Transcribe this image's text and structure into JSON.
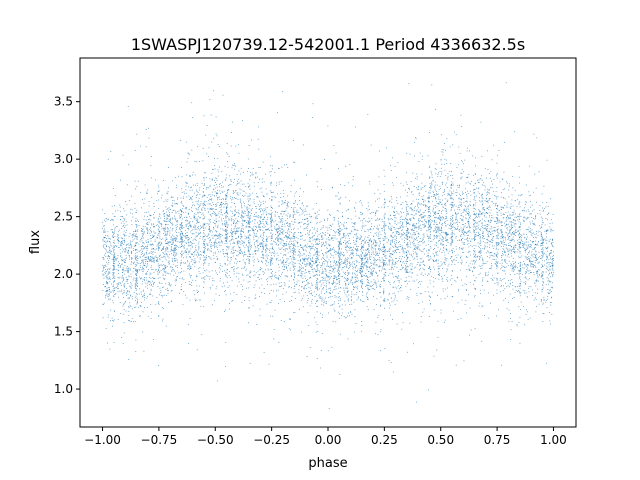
{
  "chart_data": {
    "type": "scatter",
    "title": "1SWASPJ120739.12-542001.1 Period 4336632.5s",
    "xlabel": "phase",
    "ylabel": "flux",
    "xlim": [
      -1.1,
      1.1
    ],
    "ylim": [
      0.67,
      3.88
    ],
    "xticks": [
      -1.0,
      -0.75,
      -0.5,
      -0.25,
      0.0,
      0.25,
      0.5,
      0.75,
      1.0
    ],
    "xtick_labels": [
      "−1.00",
      "−0.75",
      "−0.50",
      "−0.25",
      "0.00",
      "0.25",
      "0.50",
      "0.75",
      "1.00"
    ],
    "yticks": [
      1.0,
      1.5,
      2.0,
      2.5,
      3.0,
      3.5
    ],
    "ytick_labels": [
      "1.0",
      "1.5",
      "2.0",
      "2.5",
      "3.0",
      "3.5"
    ],
    "grid": false,
    "marker_color": "#1f77b4",
    "series": [
      {
        "phase_profile": {
          "x": [
            -1.0,
            -0.9,
            -0.8,
            -0.7,
            -0.6,
            -0.5,
            -0.4,
            -0.3,
            -0.2,
            -0.1,
            0.0,
            0.1,
            0.2,
            0.3,
            0.4,
            0.5,
            0.6,
            0.7,
            0.8,
            0.9,
            1.0
          ],
          "median_flux": [
            2.08,
            2.12,
            2.18,
            2.28,
            2.38,
            2.42,
            2.4,
            2.36,
            2.3,
            2.18,
            2.08,
            2.1,
            2.16,
            2.24,
            2.36,
            2.43,
            2.42,
            2.38,
            2.3,
            2.2,
            2.1
          ],
          "scatter_sigma": [
            0.22,
            0.22,
            0.23,
            0.24,
            0.26,
            0.28,
            0.26,
            0.25,
            0.24,
            0.23,
            0.22,
            0.22,
            0.23,
            0.24,
            0.26,
            0.28,
            0.26,
            0.25,
            0.24,
            0.23,
            0.22
          ]
        },
        "flux_range": [
          0.8,
          3.78
        ],
        "approx_point_count": 20000
      }
    ]
  }
}
